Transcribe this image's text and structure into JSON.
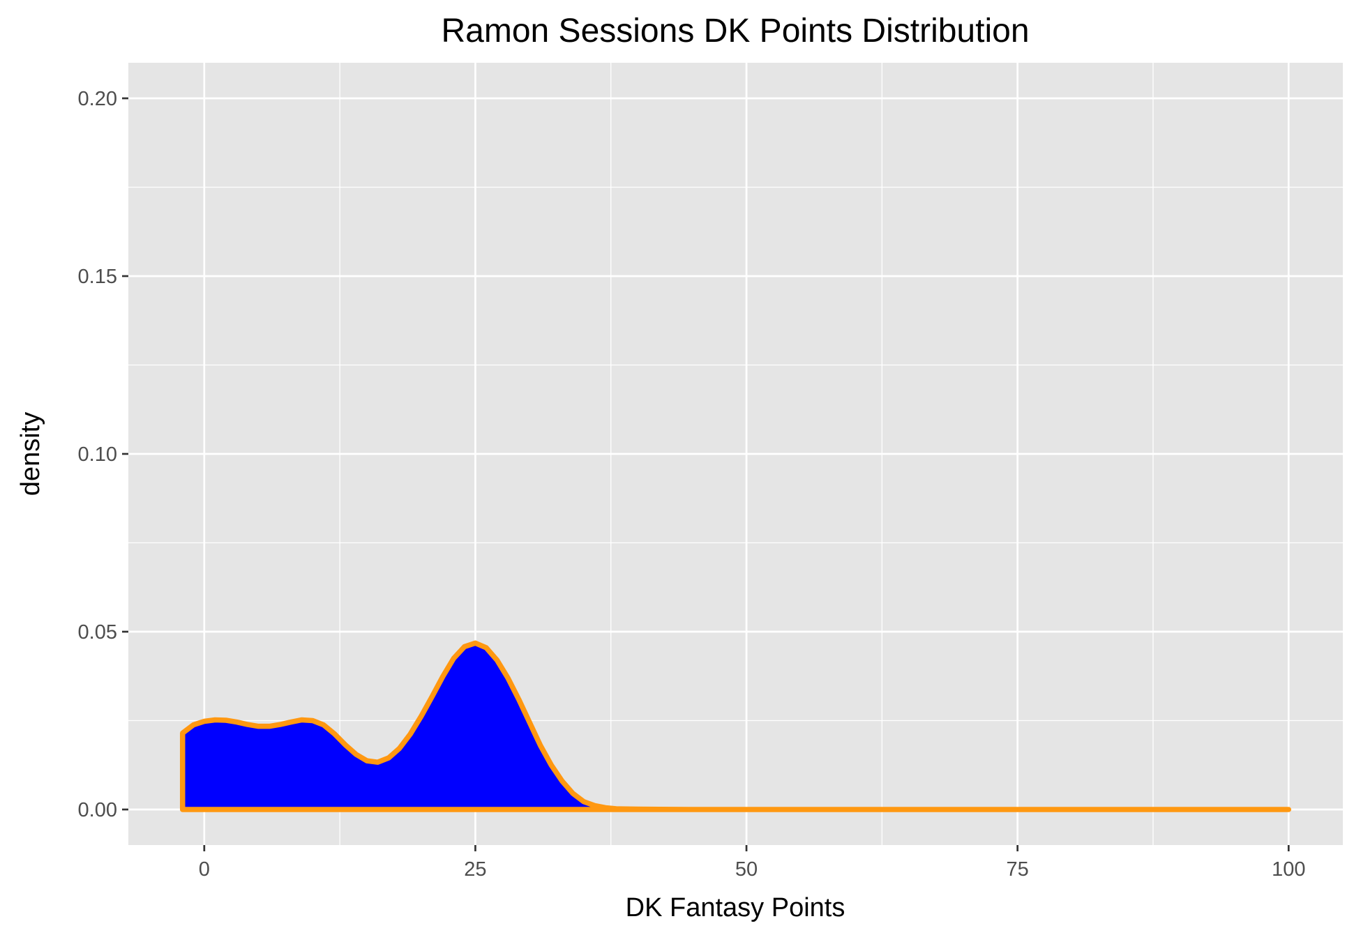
{
  "chart_data": {
    "type": "area",
    "title": "Ramon Sessions DK Points Distribution",
    "xlabel": "DK Fantasy Points",
    "ylabel": "density",
    "xlim": [
      -7,
      105
    ],
    "ylim": [
      -0.01,
      0.21
    ],
    "x_ticks": [
      0,
      25,
      50,
      75,
      100
    ],
    "x_tick_labels": [
      "0",
      "25",
      "50",
      "75",
      "100"
    ],
    "y_ticks": [
      0,
      0.05,
      0.1,
      0.15,
      0.2
    ],
    "y_tick_labels": [
      "0.00",
      "0.05",
      "0.10",
      "0.15",
      "0.20"
    ],
    "grid": true,
    "colors": {
      "fill": "#0000ff",
      "outline": "#ff9811",
      "panel": "#e5e5e5",
      "grid": "#ffffff"
    },
    "series": [
      {
        "x": [
          -2,
          -1,
          0,
          1,
          2,
          3,
          4,
          5,
          6,
          7,
          8,
          9,
          10,
          11,
          12,
          13,
          14,
          15,
          16,
          17,
          18,
          19,
          20,
          21,
          22,
          23,
          24,
          25,
          26,
          27,
          28,
          29,
          30,
          31,
          32,
          33,
          34,
          35,
          36,
          37,
          38,
          40,
          42,
          45,
          50,
          60,
          70,
          80,
          90,
          100
        ],
        "y": [
          0.0215,
          0.0238,
          0.0248,
          0.0252,
          0.0251,
          0.0246,
          0.0239,
          0.0234,
          0.0234,
          0.0239,
          0.0246,
          0.0252,
          0.025,
          0.0238,
          0.0213,
          0.0182,
          0.0155,
          0.0137,
          0.0133,
          0.0145,
          0.0172,
          0.0212,
          0.0262,
          0.0317,
          0.0374,
          0.0425,
          0.0458,
          0.0468,
          0.0455,
          0.042,
          0.037,
          0.031,
          0.0245,
          0.018,
          0.0125,
          0.008,
          0.0045,
          0.0022,
          0.0011,
          0.0005,
          0.0002,
          0.0001,
          5e-05,
          0.0,
          0.0,
          0.0,
          0.0,
          0.0,
          0.0,
          0.0
        ]
      }
    ]
  }
}
